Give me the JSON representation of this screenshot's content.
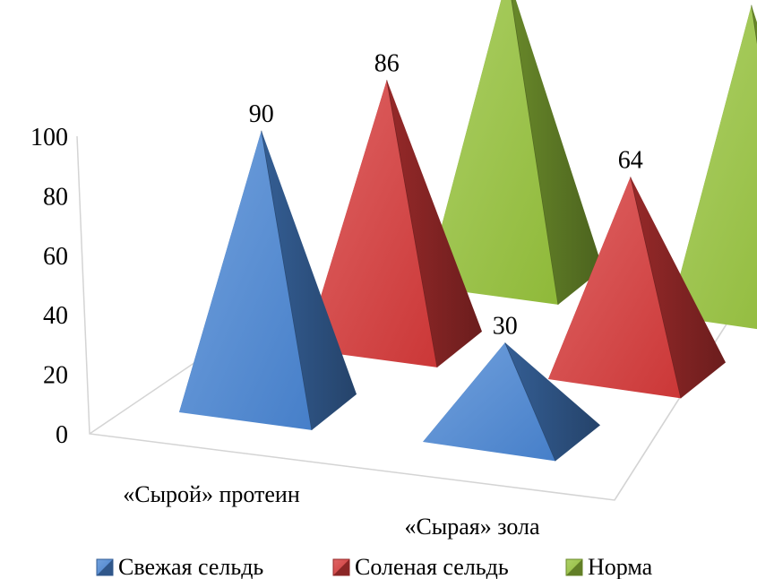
{
  "chart_data": {
    "type": "bar",
    "subtype": "3d-pyramid",
    "title": "",
    "xlabel": "",
    "ylabel": "",
    "ylim": [
      0,
      100
    ],
    "yticks": [
      0,
      20,
      40,
      60,
      80,
      100
    ],
    "categories": [
      "«Сырой» протеин",
      "«Сырая» зола"
    ],
    "series": [
      {
        "name": "Свежая сельдь",
        "values": [
          90,
          30
        ],
        "color": "#4A86D4"
      },
      {
        "name": "Соленая сельдь",
        "values": [
          86,
          64
        ],
        "color": "#D63A3A"
      },
      {
        "name": "Норма",
        "values": [
          100,
          100
        ],
        "color": "#96C33C"
      }
    ],
    "data_labels": true,
    "grid": false,
    "legend_position": "bottom"
  }
}
